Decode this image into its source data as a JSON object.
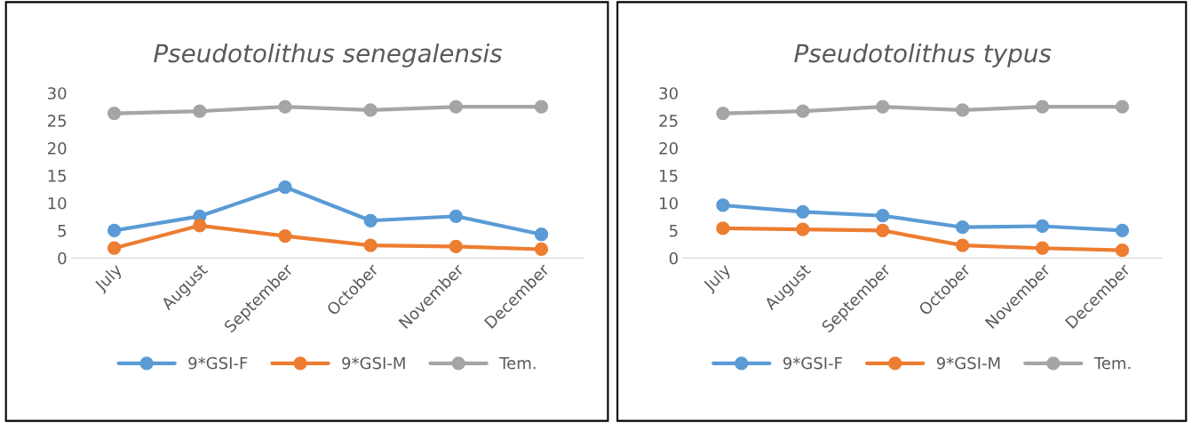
{
  "chart_data": [
    {
      "type": "line",
      "title": "Pseudotolithus senegalensis",
      "categories": [
        "July",
        "August",
        "September",
        "October",
        "November",
        "December"
      ],
      "ylim": [
        0,
        30
      ],
      "yticks": [
        0,
        5,
        10,
        15,
        20,
        25,
        30
      ],
      "grid": false,
      "legend": "bottom",
      "marker": "circle",
      "line_style": "solid",
      "series": [
        {
          "name": "9*GSI-F",
          "color": "#5b9bd5",
          "values": [
            5.0,
            7.6,
            12.9,
            6.8,
            7.6,
            4.3
          ]
        },
        {
          "name": "9*GSI-M",
          "color": "#ed7d31",
          "values": [
            1.8,
            5.9,
            4.0,
            2.3,
            2.1,
            1.6
          ]
        },
        {
          "name": "Tem.",
          "color": "#a5a5a5",
          "values": [
            26.3,
            26.7,
            27.5,
            26.9,
            27.5,
            27.5
          ]
        }
      ]
    },
    {
      "type": "line",
      "title": "Pseudotolithus typus",
      "categories": [
        "July",
        "August",
        "September",
        "October",
        "November",
        "December"
      ],
      "ylim": [
        0,
        30
      ],
      "yticks": [
        0,
        5,
        10,
        15,
        20,
        25,
        30
      ],
      "grid": false,
      "legend": "bottom",
      "marker": "circle",
      "line_style": "solid",
      "series": [
        {
          "name": "9*GSI-F",
          "color": "#5b9bd5",
          "values": [
            9.6,
            8.4,
            7.7,
            5.6,
            5.8,
            5.0
          ]
        },
        {
          "name": "9*GSI-M",
          "color": "#ed7d31",
          "values": [
            5.4,
            5.2,
            5.0,
            2.3,
            1.8,
            1.4
          ]
        },
        {
          "name": "Tem.",
          "color": "#a5a5a5",
          "values": [
            26.3,
            26.7,
            27.5,
            26.9,
            27.5,
            27.5
          ]
        }
      ]
    }
  ]
}
